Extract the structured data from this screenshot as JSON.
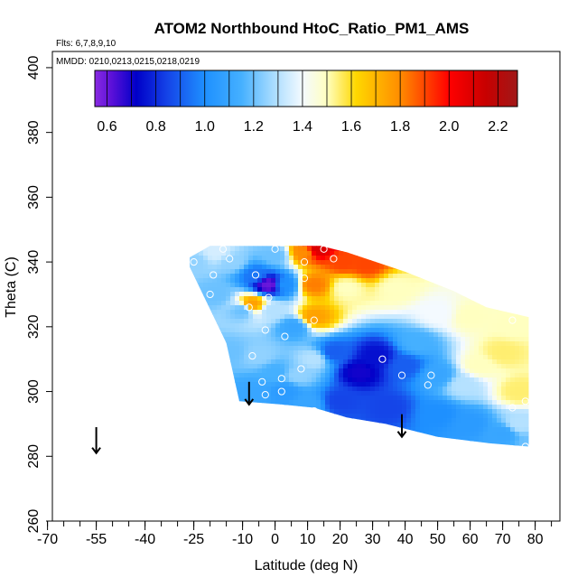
{
  "chart_data": {
    "type": "heatmap",
    "title": "ATOM2 Northbound HtoC_Ratio_PM1_AMS",
    "annotations": {
      "flights": "Flts: 6,7,8,9,10",
      "dates": "MMDD: 0210,0213,0215,0218,0219"
    },
    "xlabel": "Latitude (deg N)",
    "ylabel": "Theta (C)",
    "xlim": [
      -70,
      85
    ],
    "ylim": [
      260,
      405
    ],
    "xticks_major": [
      -70,
      -55,
      -40,
      -25,
      -10,
      0,
      10,
      20,
      30,
      40,
      50,
      60,
      70,
      80
    ],
    "xticks_major_labels": [
      "-70",
      "-55",
      "-40",
      "-25",
      "-10",
      "0",
      "10",
      "20",
      "30",
      "40",
      "50",
      "60",
      "70",
      "80"
    ],
    "yticks": [
      260,
      280,
      300,
      320,
      340,
      360,
      380,
      400
    ],
    "ytick_labels": [
      "260",
      "280",
      "300",
      "320",
      "340",
      "360",
      "380",
      "400"
    ],
    "colorbar": {
      "range": [
        0.55,
        2.28
      ],
      "ticks": [
        0.6,
        0.8,
        1.0,
        1.2,
        1.4,
        1.6,
        1.8,
        2.0,
        2.2
      ],
      "tick_labels": [
        "0.6",
        "0.8",
        "1.0",
        "1.2",
        "1.4",
        "1.6",
        "1.8",
        "2.0",
        "2.2"
      ],
      "stops": [
        {
          "v": 0.55,
          "c": "#8a2be2"
        },
        {
          "v": 0.62,
          "c": "#5a10d8"
        },
        {
          "v": 0.72,
          "c": "#0000c8"
        },
        {
          "v": 0.85,
          "c": "#1545e8"
        },
        {
          "v": 1.0,
          "c": "#1e90ff"
        },
        {
          "v": 1.15,
          "c": "#45b0ff"
        },
        {
          "v": 1.28,
          "c": "#a8dcff"
        },
        {
          "v": 1.4,
          "c": "#f4faff"
        },
        {
          "v": 1.5,
          "c": "#ffffc0"
        },
        {
          "v": 1.62,
          "c": "#ffd700"
        },
        {
          "v": 1.8,
          "c": "#ff8c00"
        },
        {
          "v": 2.0,
          "c": "#ff0000"
        },
        {
          "v": 2.15,
          "c": "#c80000"
        },
        {
          "v": 2.28,
          "c": "#a01818"
        }
      ]
    },
    "coverage": {
      "top_theta": 345,
      "bottom": [
        [
          -27,
          340
        ],
        [
          -15,
          315
        ],
        [
          -11,
          297
        ],
        [
          2,
          296
        ],
        [
          12,
          295
        ],
        [
          22,
          292
        ],
        [
          34,
          290
        ],
        [
          50,
          286
        ],
        [
          66,
          284
        ],
        [
          78,
          283
        ]
      ],
      "top": [
        [
          -27,
          341
        ],
        [
          -20,
          345
        ],
        [
          14,
          345
        ],
        [
          22,
          343
        ],
        [
          40,
          337
        ],
        [
          55,
          331
        ],
        [
          65,
          326
        ],
        [
          78,
          323
        ]
      ]
    },
    "field_points": [
      {
        "lat": -25,
        "theta": 340,
        "value": 1.25
      },
      {
        "lat": -18,
        "theta": 343,
        "value": 1.35
      },
      {
        "lat": -13,
        "theta": 340,
        "value": 1.25
      },
      {
        "lat": -18,
        "theta": 330,
        "value": 1.2
      },
      {
        "lat": -10,
        "theta": 325,
        "value": 1.2
      },
      {
        "lat": -14,
        "theta": 312,
        "value": 1.2
      },
      {
        "lat": -6,
        "theta": 336,
        "value": 0.95
      },
      {
        "lat": -2,
        "theta": 333,
        "value": 0.6
      },
      {
        "lat": 0,
        "theta": 342,
        "value": 1.2
      },
      {
        "lat": -1,
        "theta": 325,
        "value": 1.3
      },
      {
        "lat": -7,
        "theta": 327,
        "value": 1.75
      },
      {
        "lat": 3,
        "theta": 333,
        "value": 1.0
      },
      {
        "lat": 6,
        "theta": 320,
        "value": 1.1
      },
      {
        "lat": 9,
        "theta": 343,
        "value": 1.8
      },
      {
        "lat": 13,
        "theta": 344,
        "value": 2.1
      },
      {
        "lat": 12,
        "theta": 333,
        "value": 1.82
      },
      {
        "lat": 12,
        "theta": 323,
        "value": 1.75
      },
      {
        "lat": 12,
        "theta": 310,
        "value": 1.3
      },
      {
        "lat": 21,
        "theta": 340,
        "value": 1.9
      },
      {
        "lat": 22,
        "theta": 332,
        "value": 1.5
      },
      {
        "lat": 28,
        "theta": 339,
        "value": 1.9
      },
      {
        "lat": 37,
        "theta": 332,
        "value": 1.5
      },
      {
        "lat": 50,
        "theta": 324,
        "value": 1.4
      },
      {
        "lat": 60,
        "theta": 323,
        "value": 1.5
      },
      {
        "lat": 18,
        "theta": 312,
        "value": 0.9
      },
      {
        "lat": 26,
        "theta": 306,
        "value": 0.7
      },
      {
        "lat": 31,
        "theta": 311,
        "value": 0.75
      },
      {
        "lat": 40,
        "theta": 308,
        "value": 0.9
      },
      {
        "lat": 44,
        "theta": 315,
        "value": 1.15
      },
      {
        "lat": 50,
        "theta": 305,
        "value": 1.1
      },
      {
        "lat": 58,
        "theta": 302,
        "value": 1.3
      },
      {
        "lat": 63,
        "theta": 308,
        "value": 1.5
      },
      {
        "lat": 70,
        "theta": 312,
        "value": 1.55
      },
      {
        "lat": 73,
        "theta": 320,
        "value": 1.5
      },
      {
        "lat": 75,
        "theta": 300,
        "value": 1.55
      },
      {
        "lat": 75,
        "theta": 290,
        "value": 1.3
      },
      {
        "lat": 70,
        "theta": 287,
        "value": 1.1
      },
      {
        "lat": 60,
        "theta": 290,
        "value": 1.05
      },
      {
        "lat": 50,
        "theta": 293,
        "value": 1.0
      },
      {
        "lat": 35,
        "theta": 295,
        "value": 0.85
      },
      {
        "lat": 20,
        "theta": 297,
        "value": 0.85
      },
      {
        "lat": 10,
        "theta": 296,
        "value": 1.1
      },
      {
        "lat": 3,
        "theta": 300,
        "value": 1.05
      },
      {
        "lat": 0,
        "theta": 306,
        "value": 1.15
      },
      {
        "lat": -6,
        "theta": 300,
        "value": 1.1
      },
      {
        "lat": -5,
        "theta": 311,
        "value": 1.25
      },
      {
        "lat": 7,
        "theta": 305,
        "value": 1.25
      },
      {
        "lat": 80,
        "theta": 284,
        "value": 1.2
      }
    ],
    "obs_points": [
      {
        "lat": -25,
        "theta": 340
      },
      {
        "lat": -19,
        "theta": 336
      },
      {
        "lat": -20,
        "theta": 330
      },
      {
        "lat": -16,
        "theta": 344
      },
      {
        "lat": -14,
        "theta": 341
      },
      {
        "lat": -6,
        "theta": 336
      },
      {
        "lat": -8,
        "theta": 326
      },
      {
        "lat": -7,
        "theta": 311
      },
      {
        "lat": -4,
        "theta": 303
      },
      {
        "lat": -3,
        "theta": 299
      },
      {
        "lat": -3,
        "theta": 319
      },
      {
        "lat": -2,
        "theta": 329
      },
      {
        "lat": 0,
        "theta": 344
      },
      {
        "lat": 2,
        "theta": 304
      },
      {
        "lat": 2,
        "theta": 300
      },
      {
        "lat": 3,
        "theta": 317
      },
      {
        "lat": 8,
        "theta": 307
      },
      {
        "lat": 9,
        "theta": 335
      },
      {
        "lat": 9,
        "theta": 340
      },
      {
        "lat": 12,
        "theta": 322
      },
      {
        "lat": 12,
        "theta": 294
      },
      {
        "lat": 15,
        "theta": 344
      },
      {
        "lat": 18,
        "theta": 341
      },
      {
        "lat": 33,
        "theta": 310
      },
      {
        "lat": 39,
        "theta": 305
      },
      {
        "lat": 47,
        "theta": 302
      },
      {
        "lat": 48,
        "theta": 305
      },
      {
        "lat": 73,
        "theta": 322
      },
      {
        "lat": 73,
        "theta": 295
      },
      {
        "lat": 77,
        "theta": 297
      },
      {
        "lat": 77,
        "theta": 283
      }
    ],
    "arrows": [
      {
        "lat": -55,
        "theta_from": 289,
        "theta_to": 281
      },
      {
        "lat": -8,
        "theta_from": 303,
        "theta_to": 296
      },
      {
        "lat": 39,
        "theta_from": 293,
        "theta_to": 286
      }
    ]
  }
}
